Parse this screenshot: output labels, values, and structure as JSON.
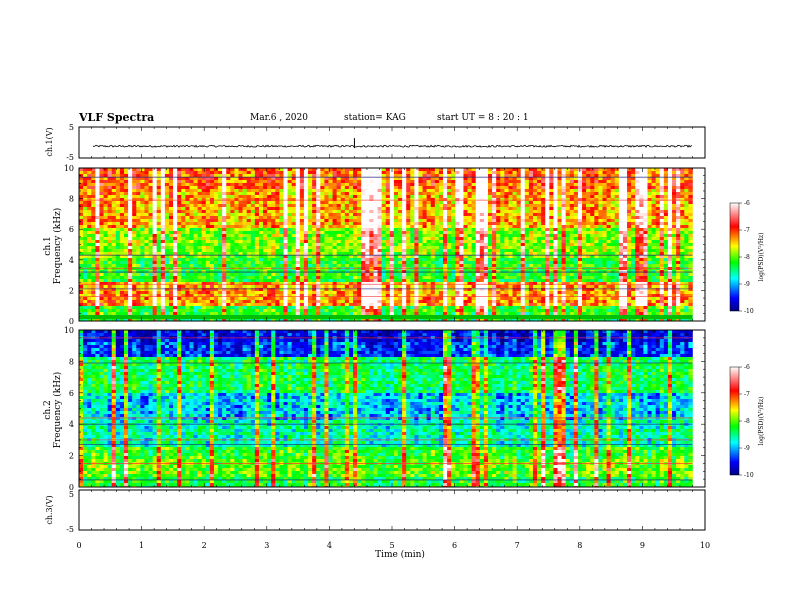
{
  "header": {
    "title": "VLF Spectra",
    "date": "Mar.6 , 2020",
    "station": "station= KAG",
    "start_ut": "start UT = 8 : 20 : 1"
  },
  "axes": {
    "ch1v_label": "ch.1(V)",
    "ch1_label": "ch.1",
    "ch2_label": "ch.2",
    "ch3v_label": "ch.3(V)",
    "freq_label": "Frequency (kHz)",
    "time_label": "Time (min)",
    "colorbar_label": "log(PSD)(V²/Hz)"
  },
  "colors": {
    "spectrogram_scale": [
      "#000080",
      "#0000ff",
      "#00ffff",
      "#00ff00",
      "#ffff00",
      "#ff0000",
      "#ffffff"
    ]
  },
  "chart_data": [
    {
      "type": "line",
      "panel": "ch.1 waveform",
      "ylabel": "ch.1(V)",
      "ylim": [
        -5,
        5
      ],
      "yticks": [
        "5",
        "-5"
      ],
      "x_range_min": [
        0,
        9.8
      ],
      "description_values": {
        "baseline_V": -1.2
      }
    },
    {
      "type": "heatmap",
      "panel": "ch.1 spectrogram",
      "ylabel": "Frequency (kHz)",
      "ylim": [
        0,
        10
      ],
      "yticks": [
        "0",
        "2",
        "4",
        "6",
        "8",
        "10"
      ],
      "x_range_min": [
        0,
        9.8
      ],
      "colorbar": {
        "label": "log(PSD)(V²/Hz)",
        "min": -10,
        "max": -6,
        "ticks": [
          "-6",
          "-7",
          "-8",
          "-9",
          "-10"
        ]
      }
    },
    {
      "type": "heatmap",
      "panel": "ch.2 spectrogram",
      "ylabel": "Frequency (kHz)",
      "ylim": [
        0,
        10
      ],
      "yticks": [
        "0",
        "2",
        "4",
        "6",
        "8",
        "10"
      ],
      "x_range_min": [
        0,
        9.8
      ],
      "colorbar": {
        "label": "log(PSD)(V²/Hz)",
        "min": -10,
        "max": -6,
        "ticks": [
          "-6",
          "-7",
          "-8",
          "-9",
          "-10"
        ]
      }
    },
    {
      "type": "line",
      "panel": "ch.3 waveform",
      "ylabel": "ch.3(V)",
      "ylim": [
        -5,
        5
      ],
      "yticks": [
        "5",
        "-5"
      ],
      "x_range_min": [
        0,
        10
      ]
    },
    {
      "type": "axis",
      "xlabel": "Time (min)",
      "xlim": [
        0,
        10
      ],
      "xticks": [
        "0",
        "1",
        "2",
        "3",
        "4",
        "5",
        "6",
        "7",
        "8",
        "9",
        "10"
      ]
    }
  ]
}
